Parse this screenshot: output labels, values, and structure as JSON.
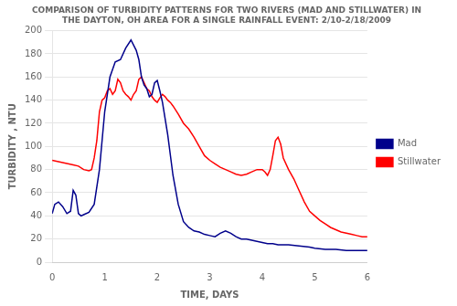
{
  "chart_data": {
    "type": "line",
    "title": "COMPARISON OF TURBIDITY PATTERNS FOR TWO RIVERS (MAD AND STILLWATER) IN\nTHE DAYTON, OH AREA FOR A SINGLE RAINFALL EVENT: 2/10-2/18/2009",
    "x_label": "TIME, DAYS",
    "y_label": "TURBIDITY , NTU",
    "xlim": [
      0,
      6
    ],
    "ylim": [
      0,
      200
    ],
    "xticks": [
      0,
      1,
      2,
      3,
      4,
      5,
      6
    ],
    "yticks": [
      0,
      20,
      40,
      60,
      80,
      100,
      120,
      140,
      160,
      180,
      200
    ],
    "grid": "y",
    "legend": "right",
    "series": [
      {
        "name": "Mad",
        "color": "#00008B",
        "x": [
          0.0,
          0.05,
          0.12,
          0.2,
          0.28,
          0.35,
          0.4,
          0.45,
          0.5,
          0.55,
          0.6,
          0.7,
          0.8,
          0.9,
          1.0,
          1.1,
          1.2,
          1.3,
          1.4,
          1.5,
          1.6,
          1.65,
          1.7,
          1.75,
          1.8,
          1.85,
          1.9,
          1.95,
          2.0,
          2.05,
          2.1,
          2.2,
          2.3,
          2.4,
          2.5,
          2.6,
          2.7,
          2.8,
          2.9,
          3.0,
          3.1,
          3.2,
          3.3,
          3.4,
          3.5,
          3.6,
          3.7,
          3.8,
          3.9,
          4.0,
          4.1,
          4.2,
          4.3,
          4.5,
          4.7,
          4.9,
          5.0,
          5.2,
          5.4,
          5.6,
          5.8,
          6.0
        ],
        "values": [
          42,
          50,
          52,
          48,
          42,
          44,
          62,
          58,
          42,
          40,
          41,
          43,
          50,
          80,
          130,
          160,
          173,
          175,
          185,
          192,
          183,
          175,
          160,
          153,
          150,
          143,
          145,
          155,
          157,
          148,
          138,
          110,
          75,
          50,
          35,
          30,
          27,
          26,
          24,
          23,
          22,
          25,
          27,
          25,
          22,
          20,
          20,
          19,
          18,
          17,
          16,
          16,
          15,
          15,
          14,
          13,
          12,
          11,
          11,
          10,
          10,
          10
        ]
      },
      {
        "name": "Stillwater",
        "color": "#FF0000",
        "x": [
          0.0,
          0.1,
          0.2,
          0.3,
          0.4,
          0.5,
          0.6,
          0.7,
          0.75,
          0.8,
          0.85,
          0.9,
          0.95,
          1.0,
          1.05,
          1.1,
          1.15,
          1.2,
          1.25,
          1.3,
          1.35,
          1.4,
          1.45,
          1.5,
          1.55,
          1.6,
          1.65,
          1.7,
          1.75,
          1.8,
          1.85,
          1.9,
          1.95,
          2.0,
          2.05,
          2.1,
          2.15,
          2.2,
          2.25,
          2.3,
          2.4,
          2.5,
          2.6,
          2.7,
          2.8,
          2.9,
          3.0,
          3.1,
          3.2,
          3.3,
          3.4,
          3.5,
          3.6,
          3.7,
          3.8,
          3.9,
          4.0,
          4.05,
          4.1,
          4.15,
          4.2,
          4.25,
          4.3,
          4.35,
          4.4,
          4.5,
          4.6,
          4.7,
          4.8,
          4.9,
          5.0,
          5.1,
          5.2,
          5.3,
          5.4,
          5.5,
          5.6,
          5.7,
          5.8,
          5.9,
          6.0
        ],
        "values": [
          88,
          87,
          86,
          85,
          84,
          83,
          80,
          79,
          80,
          90,
          105,
          130,
          140,
          142,
          148,
          150,
          145,
          148,
          158,
          155,
          148,
          145,
          143,
          140,
          145,
          148,
          158,
          160,
          155,
          150,
          148,
          143,
          140,
          138,
          142,
          145,
          143,
          140,
          138,
          135,
          128,
          120,
          115,
          108,
          100,
          92,
          88,
          85,
          82,
          80,
          78,
          76,
          75,
          76,
          78,
          80,
          80,
          78,
          75,
          80,
          92,
          105,
          108,
          102,
          90,
          80,
          72,
          62,
          52,
          44,
          40,
          36,
          33,
          30,
          28,
          26,
          25,
          24,
          23,
          22,
          22
        ]
      }
    ]
  }
}
